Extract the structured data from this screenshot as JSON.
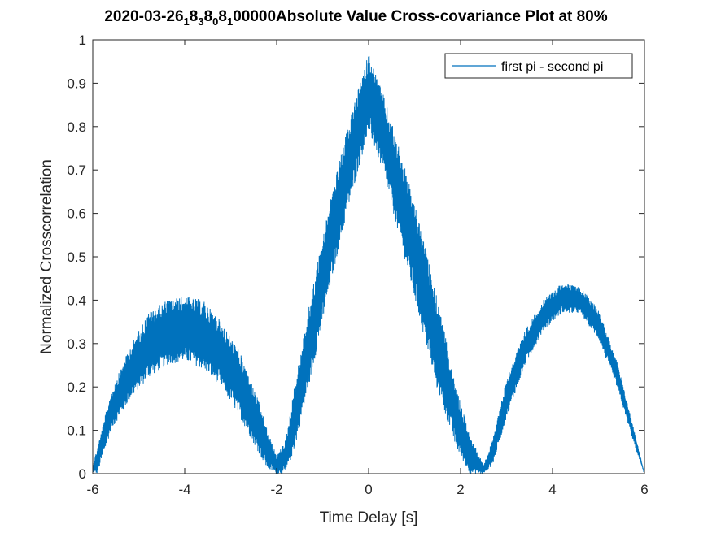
{
  "chart_data": {
    "type": "line",
    "title": {
      "segments": [
        {
          "text": "2020-03-26",
          "sub": false
        },
        {
          "text": "1",
          "sub": true
        },
        {
          "text": "8",
          "sub": false
        },
        {
          "text": "3",
          "sub": true
        },
        {
          "text": "8",
          "sub": false
        },
        {
          "text": "0",
          "sub": true
        },
        {
          "text": "8",
          "sub": false
        },
        {
          "text": "1",
          "sub": true
        },
        {
          "text": "00000Absolute Value Cross-covariance Plot at 80%",
          "sub": false
        }
      ]
    },
    "xlabel": "Time Delay [s]",
    "ylabel": "Normalized Crosscorrelation",
    "xlim": [
      -6,
      6
    ],
    "ylim": [
      0,
      1
    ],
    "xticks": [
      -6,
      -4,
      -2,
      0,
      2,
      4,
      6
    ],
    "xtick_labels": [
      "-6",
      "-4",
      "-2",
      "0",
      "2",
      "4",
      "6"
    ],
    "yticks": [
      0,
      0.1,
      0.2,
      0.3,
      0.4,
      0.5,
      0.6,
      0.7,
      0.8,
      0.9,
      1
    ],
    "ytick_labels": [
      "0",
      "0.1",
      "0.2",
      "0.3",
      "0.4",
      "0.5",
      "0.6",
      "0.7",
      "0.8",
      "0.9",
      "1"
    ],
    "grid": false,
    "legend_position": "top-right",
    "series": [
      {
        "name": "first pi - second pi",
        "color": "#0072BD",
        "envelope": {
          "x": [
            -6.0,
            -5.9,
            -5.6,
            -5.2,
            -4.8,
            -4.4,
            -4.0,
            -3.6,
            -3.2,
            -2.8,
            -2.4,
            -2.2,
            -2.0,
            -1.8,
            -1.6,
            -1.2,
            -0.8,
            -0.4,
            0.0,
            0.3,
            0.7,
            1.1,
            1.5,
            1.9,
            2.2,
            2.5,
            2.7,
            3.0,
            3.4,
            3.8,
            4.2,
            4.6,
            5.0,
            5.4,
            5.8,
            6.0
          ],
          "lower": [
            0.0,
            0.0,
            0.1,
            0.17,
            0.22,
            0.25,
            0.26,
            0.24,
            0.2,
            0.13,
            0.05,
            0.01,
            0.0,
            0.0,
            0.06,
            0.25,
            0.45,
            0.63,
            0.79,
            0.7,
            0.53,
            0.36,
            0.19,
            0.06,
            0.0,
            0.0,
            0.02,
            0.13,
            0.25,
            0.33,
            0.37,
            0.37,
            0.31,
            0.2,
            0.06,
            0.0
          ],
          "upper": [
            0.02,
            0.06,
            0.19,
            0.29,
            0.37,
            0.4,
            0.41,
            0.4,
            0.35,
            0.28,
            0.17,
            0.1,
            0.04,
            0.08,
            0.21,
            0.44,
            0.65,
            0.82,
            0.97,
            0.88,
            0.74,
            0.58,
            0.4,
            0.2,
            0.09,
            0.02,
            0.08,
            0.22,
            0.33,
            0.4,
            0.44,
            0.43,
            0.38,
            0.26,
            0.09,
            0.0
          ]
        }
      }
    ]
  }
}
